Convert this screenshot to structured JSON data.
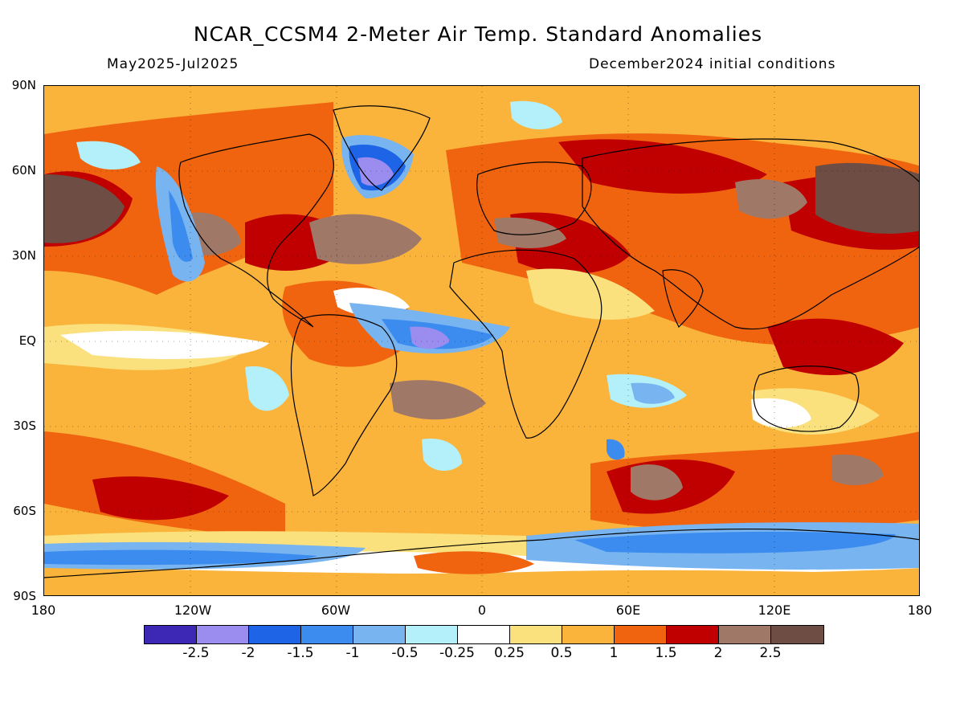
{
  "title": "NCAR_CCSM4 2-Meter Air Temp. Standard Anomalies",
  "period": "May2025-Jul2025",
  "initial_conditions": "December2024 initial conditions",
  "lat_labels": [
    "90N",
    "60N",
    "30N",
    "EQ",
    "30S",
    "60S",
    "90S"
  ],
  "lon_labels": [
    "180",
    "120W",
    "60W",
    "0",
    "60E",
    "120E",
    "180"
  ],
  "colorbar": {
    "colors": [
      "#3c28b4",
      "#9b8cf0",
      "#1e64e6",
      "#3c8cf0",
      "#78b4f0",
      "#b4f0fa",
      "#ffffff",
      "#fae17d",
      "#fab43c",
      "#f0640f",
      "#c00000",
      "#a07868",
      "#6e4e44"
    ],
    "labels": [
      "-2.5",
      "-2",
      "-1.5",
      "-1",
      "-0.5",
      "-0.25",
      "0.25",
      "0.5",
      "1",
      "1.5",
      "2",
      "2.5"
    ]
  },
  "map": {
    "background_color": "#fab43c",
    "regions_description": "Mostly warm anomalies (orange/red/brown) globally; cool anomalies (blue/purple) near Greenland/Labrador Sea, eastern tropical Atlantic, eastern North Pacific coast, and Southern Ocean near Antarctica."
  }
}
